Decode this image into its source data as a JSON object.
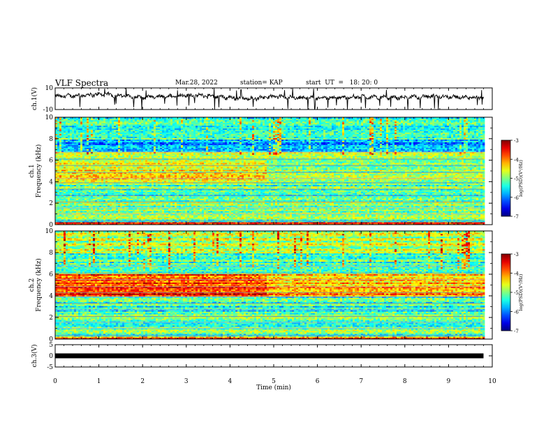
{
  "header": {
    "title": "VLF Spectra",
    "date": "Mar.28, 2022",
    "station": "station= KAP",
    "start": "start  UT  =   18: 20: 0"
  },
  "chart_data": [
    {
      "type": "line",
      "id": "ch1-waveform",
      "ylabel": "ch.1(V)",
      "ylim": [
        -10,
        10
      ],
      "yticks": [
        "10",
        "-10"
      ],
      "xlim": [
        0,
        10
      ],
      "trace_end_min": 9.8,
      "x": [
        0,
        0.5,
        1,
        1.5,
        2,
        2.5,
        3,
        3.5,
        4,
        4.5,
        5,
        5.5,
        6,
        6.5,
        7,
        7.5,
        8,
        8.5,
        9,
        9.5,
        9.8
      ],
      "y": [
        2,
        3,
        4,
        3,
        1,
        2,
        3,
        3,
        1,
        0,
        2,
        1,
        1,
        1,
        2,
        1,
        1,
        2,
        2,
        1,
        1
      ]
    },
    {
      "type": "heatmap",
      "id": "ch1-spectrogram",
      "ylabel": "Frequency (kHz)",
      "ylabel2": "ch.1",
      "ylim": [
        0,
        10
      ],
      "yticks": [
        "0",
        "2",
        "4",
        "6",
        "8",
        "10"
      ],
      "xlim": [
        0,
        10
      ],
      "data_end_min": 9.8,
      "colorbar": {
        "label": "log(PSD)(V²/Hz)",
        "range": [
          -7,
          -3
        ],
        "ticks": [
          "-3",
          "-4",
          "-5",
          "-6",
          "-7"
        ]
      },
      "regions": [
        {
          "f_range": [
            0,
            0.3
          ],
          "level": -3.5
        },
        {
          "f_range": [
            0.3,
            2.3
          ],
          "level": -5.1
        },
        {
          "f_range": [
            2.3,
            4
          ],
          "level": -5.2
        },
        {
          "f_range": [
            4,
            5.5
          ],
          "level": -4.6
        },
        {
          "f_range": [
            5.5,
            6.8
          ],
          "level": -4.9
        },
        {
          "f_range": [
            6.8,
            8
          ],
          "level": -5.8
        },
        {
          "f_range": [
            8,
            10
          ],
          "level": -5.3
        }
      ]
    },
    {
      "type": "heatmap",
      "id": "ch2-spectrogram",
      "ylabel": "Frequency (kHz)",
      "ylabel2": "ch.2",
      "ylim": [
        0,
        10
      ],
      "yticks": [
        "0",
        "2",
        "4",
        "6",
        "8",
        "10"
      ],
      "xlim": [
        0,
        10
      ],
      "data_end_min": 9.8,
      "colorbar": {
        "label": "log(PSD)(V²/Hz)",
        "range": [
          -7,
          -3
        ],
        "ticks": [
          "-3",
          "-4",
          "-5",
          "-6",
          "-7"
        ]
      },
      "regions": [
        {
          "f_range": [
            0,
            0.3
          ],
          "level": -3.8
        },
        {
          "f_range": [
            0.3,
            2.3
          ],
          "level": -5.1
        },
        {
          "f_range": [
            2.3,
            4
          ],
          "level": -5.3
        },
        {
          "f_range": [
            4,
            6
          ],
          "level": -3.9
        },
        {
          "f_range": [
            6,
            8
          ],
          "level": -5.2
        },
        {
          "f_range": [
            8,
            10
          ],
          "level": -4.8
        }
      ]
    },
    {
      "type": "line",
      "id": "ch3-waveform",
      "ylabel": "ch.3(V)",
      "ylim": [
        -5,
        5
      ],
      "yticks": [
        "5",
        "0",
        "-5"
      ],
      "xlim": [
        0,
        10
      ],
      "x": [
        0,
        9.8
      ],
      "y": [
        0,
        0
      ]
    }
  ],
  "xaxis": {
    "label": "Time  (min)",
    "ticks": [
      "0",
      "1",
      "2",
      "3",
      "4",
      "5",
      "6",
      "7",
      "8",
      "9",
      "10"
    ]
  }
}
